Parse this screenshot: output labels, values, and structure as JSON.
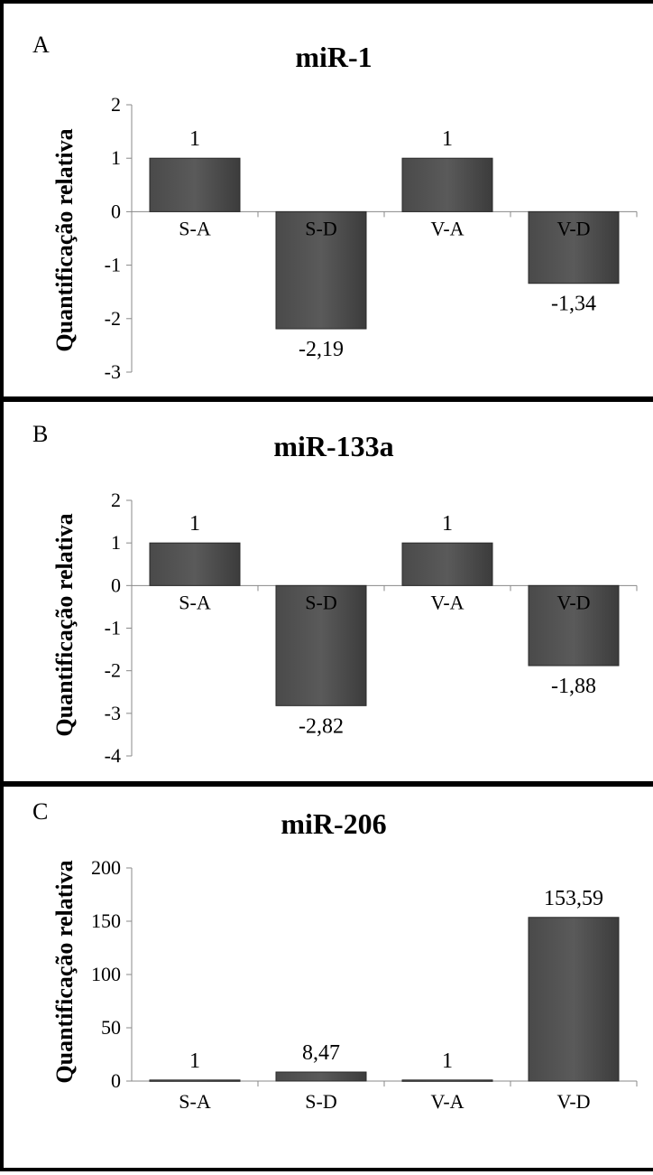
{
  "chart_data": [
    {
      "panel": "A",
      "type": "bar",
      "title": "miR-1",
      "ylabel": "Quantificação relativa",
      "categories": [
        "S-A",
        "S-D",
        "V-A",
        "V-D"
      ],
      "values": [
        1,
        -2.19,
        1,
        -1.34
      ],
      "data_labels": [
        "1",
        "-2,19",
        "1",
        "-1,34"
      ],
      "ylim": [
        -3,
        2
      ],
      "yticks": [
        2,
        1,
        0,
        -1,
        -2,
        -3
      ],
      "grid": false,
      "bar_color": "#5a5a5a"
    },
    {
      "panel": "B",
      "type": "bar",
      "title": "miR-133a",
      "ylabel": "Quantificação relativa",
      "categories": [
        "S-A",
        "S-D",
        "V-A",
        "V-D"
      ],
      "values": [
        1,
        -2.82,
        1,
        -1.88
      ],
      "data_labels": [
        "1",
        "-2,82",
        "1",
        "-1,88"
      ],
      "ylim": [
        -4,
        2
      ],
      "yticks": [
        2,
        1,
        0,
        -1,
        -2,
        -3,
        -4
      ],
      "grid": false,
      "bar_color": "#5a5a5a"
    },
    {
      "panel": "C",
      "type": "bar",
      "title": "miR-206",
      "ylabel": "Quantificação relativa",
      "categories": [
        "S-A",
        "S-D",
        "V-A",
        "V-D"
      ],
      "values": [
        1,
        8.47,
        1,
        153.59
      ],
      "data_labels": [
        "1",
        "8,47",
        "1",
        "153,59"
      ],
      "ylim": [
        0,
        200
      ],
      "yticks": [
        200,
        150,
        100,
        50,
        0
      ],
      "grid": false,
      "bar_color": "#5a5a5a"
    }
  ]
}
